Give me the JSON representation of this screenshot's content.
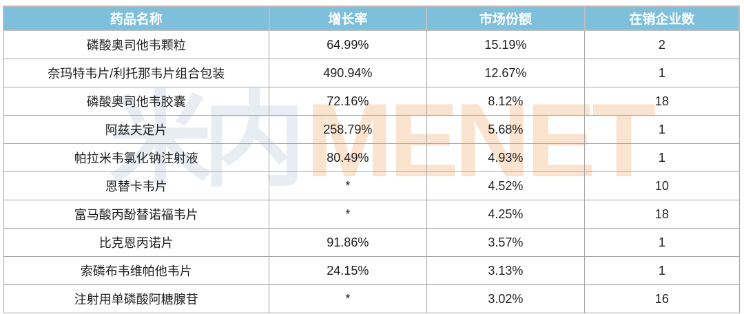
{
  "chart_data": {
    "type": "table",
    "columns": [
      "药品名称",
      "增长率",
      "市场份额",
      "在销企业数"
    ],
    "rows": [
      [
        "磷酸奥司他韦颗粒",
        "64.99%",
        "15.19%",
        "2"
      ],
      [
        "奈玛特韦片/利托那韦片组合包装",
        "490.94%",
        "12.67%",
        "1"
      ],
      [
        "磷酸奥司他韦胶囊",
        "72.16%",
        "8.12%",
        "18"
      ],
      [
        "阿兹夫定片",
        "258.79%",
        "5.68%",
        "1"
      ],
      [
        "帕拉米韦氯化钠注射液",
        "80.49%",
        "4.93%",
        "1"
      ],
      [
        "恩替卡韦片",
        "*",
        "4.52%",
        "10"
      ],
      [
        "富马酸丙酚替诺福韦片",
        "*",
        "4.25%",
        "18"
      ],
      [
        "比克恩丙诺片",
        "91.86%",
        "3.57%",
        "1"
      ],
      [
        "索磷布韦维帕他韦片",
        "24.15%",
        "3.13%",
        "1"
      ],
      [
        "注射用单磷酸阿糖腺苷",
        "*",
        "3.02%",
        "16"
      ]
    ],
    "title": "",
    "legend": null,
    "grid": true
  },
  "watermark": {
    "cn": "米内",
    "en": "MENET"
  },
  "colors": {
    "header_bg": "#7EC0DC",
    "header_text": "#FFFFFF",
    "border": "#A6A6A6",
    "border_light": "#BDBDBD",
    "body_text": "#1F1F1F",
    "watermark_cn": "#E7EDF2",
    "watermark_en": "#FAE3CF"
  }
}
